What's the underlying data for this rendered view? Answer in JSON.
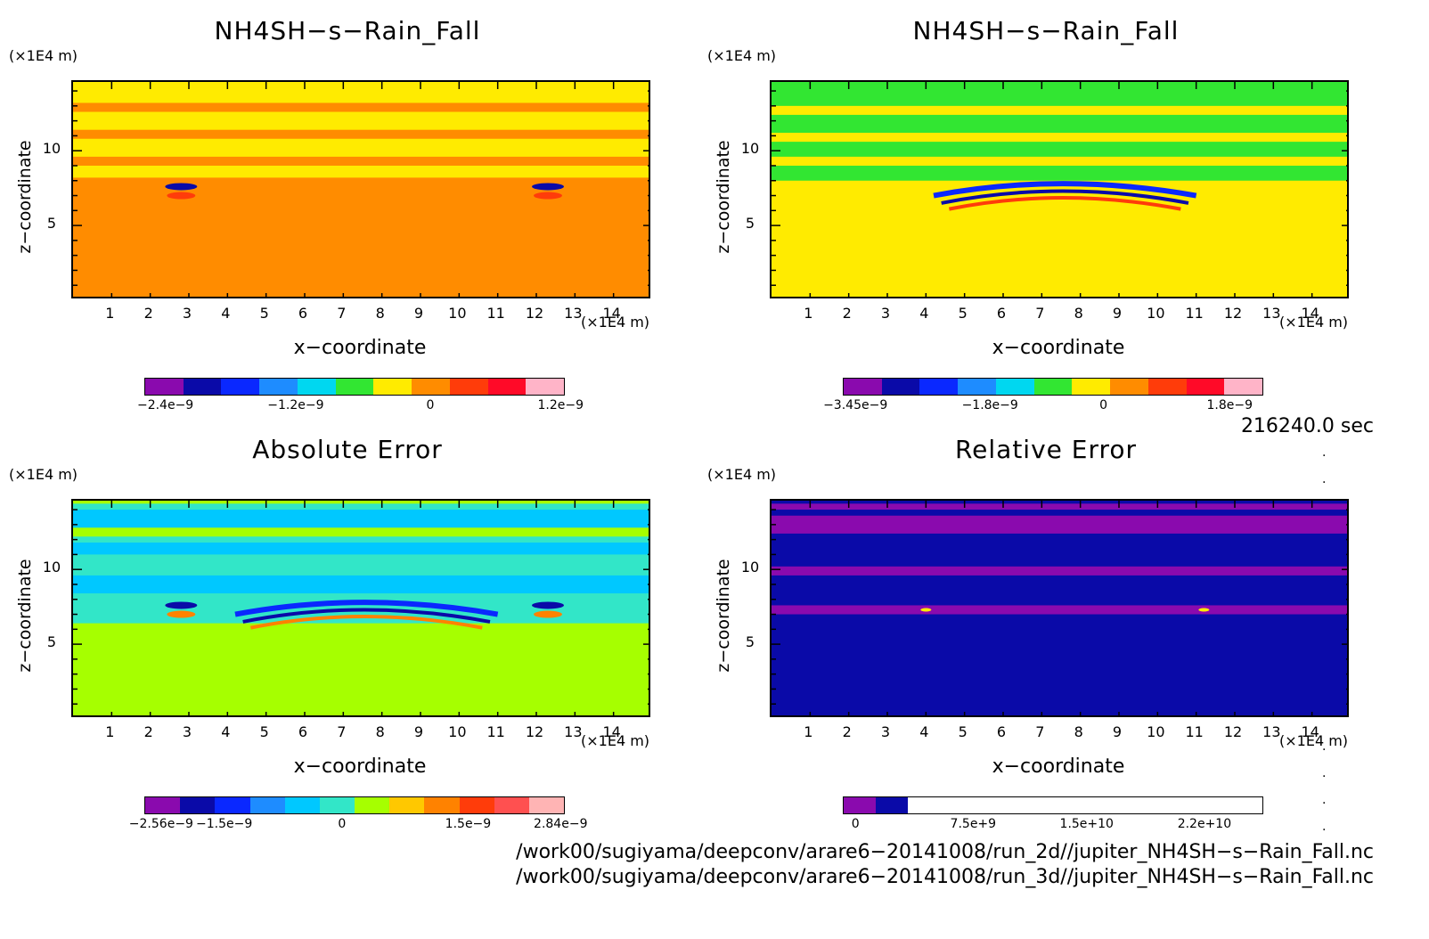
{
  "panels": [
    {
      "title": "NH4SH−s−Rain_Fall",
      "z_unit": "(×1E4 m)",
      "x_unit": "(×1E4 m)",
      "xlabel": "x−coordinate",
      "zlabel": "z−coordinate",
      "colorbar_ticks": [
        "−2.4e−9",
        "−1.2e−9",
        "0",
        "1.2e−9"
      ],
      "colorbar_colors": [
        "#8a0aae",
        "#0a0aa8",
        "#0a28ff",
        "#1e8cff",
        "#00d7f0",
        "#32e632",
        "#ffeb00",
        "#ff8c00",
        "#ff3c0a",
        "#ff0a28",
        "#ffb4c8"
      ]
    },
    {
      "title": "NH4SH−s−Rain_Fall",
      "z_unit": "(×1E4 m)",
      "x_unit": "(×1E4 m)",
      "xlabel": "x−coordinate",
      "zlabel": "z−coordinate",
      "colorbar_ticks": [
        "−3.45e−9",
        "−1.8e−9",
        "0",
        "1.8e−9"
      ],
      "colorbar_colors": [
        "#8a0aae",
        "#0a0aa8",
        "#0a28ff",
        "#1e8cff",
        "#00d7f0",
        "#32e632",
        "#ffeb00",
        "#ff8c00",
        "#ff3c0a",
        "#ff0a28",
        "#ffb4c8"
      ]
    },
    {
      "title": "Absolute Error",
      "z_unit": "(×1E4 m)",
      "x_unit": "(×1E4 m)",
      "xlabel": "x−coordinate",
      "zlabel": "z−coordinate",
      "colorbar_ticks": [
        "−2.56e−9",
        "−1.5e−9",
        "0",
        "1.5e−9",
        "2.84e−9"
      ],
      "colorbar_colors": [
        "#8a0aae",
        "#0a0aa8",
        "#0a28ff",
        "#1e8cff",
        "#00c8ff",
        "#32e6c8",
        "#a6ff00",
        "#ffc800",
        "#ff8200",
        "#ff3c0a",
        "#ff5050",
        "#ffb4b4"
      ]
    },
    {
      "title": "Relative Error",
      "z_unit": "(×1E4 m)",
      "x_unit": "(×1E4 m)",
      "xlabel": "x−coordinate",
      "zlabel": "z−coordinate",
      "colorbar_ticks": [
        "0",
        "7.5e+9",
        "1.5e+10",
        "2.2e+10"
      ],
      "colorbar_colors": [
        "#8a0aae",
        "#0a0aa8",
        "#ffffff",
        "#ffffff",
        "#ffffff",
        "#ffffff",
        "#ffffff",
        "#ffffff",
        "#ffffff",
        "#ffffff",
        "#ffffff",
        "#ffffff",
        "#ffffff"
      ]
    }
  ],
  "x_ticks": [
    "1",
    "2",
    "3",
    "4",
    "5",
    "6",
    "7",
    "8",
    "9",
    "10",
    "11",
    "12",
    "13",
    "14"
  ],
  "z_ticks": [
    "5",
    "10"
  ],
  "time_label": "216240.0 sec",
  "file_paths": [
    "/work00/sugiyama/deepconv/arare6−20141008/run_2d//jupiter_NH4SH−s−Rain_Fall.nc",
    "/work00/sugiyama/deepconv/arare6−20141008/run_3d//jupiter_NH4SH−s−Rain_Fall.nc"
  ],
  "chart_data": [
    {
      "type": "heatmap",
      "title": "NH4SH−s−Rain_Fall",
      "xlabel": "x−coordinate",
      "ylabel": "z−coordinate",
      "xlim": [
        0,
        15
      ],
      "ylim": [
        0,
        14.6
      ],
      "x_unit": "×1E4 m",
      "y_unit": "×1E4 m",
      "colorbar_range": [
        -2.6e-09,
        1.4e-09
      ],
      "description_values": {
        "background_value": 0.0
      }
    },
    {
      "type": "heatmap",
      "title": "NH4SH−s−Rain_Fall",
      "xlabel": "x−coordinate",
      "ylabel": "z−coordinate",
      "xlim": [
        0,
        15
      ],
      "ylim": [
        0,
        14.6
      ],
      "x_unit": "×1E4 m",
      "y_unit": "×1E4 m",
      "colorbar_range": [
        -3.45e-09,
        2.6e-09
      ]
    },
    {
      "type": "heatmap",
      "title": "Absolute Error",
      "xlabel": "x−coordinate",
      "ylabel": "z−coordinate",
      "xlim": [
        0,
        15
      ],
      "ylim": [
        0,
        14.6
      ],
      "x_unit": "×1E4 m",
      "y_unit": "×1E4 m",
      "colorbar_range": [
        -2.56e-09,
        2.84e-09
      ]
    },
    {
      "type": "heatmap",
      "title": "Relative Error",
      "xlabel": "x−coordinate",
      "ylabel": "z−coordinate",
      "xlim": [
        0,
        15
      ],
      "ylim": [
        0,
        14.6
      ],
      "x_unit": "×1E4 m",
      "y_unit": "×1E4 m",
      "colorbar_range": [
        0,
        28000000000.0
      ]
    }
  ]
}
